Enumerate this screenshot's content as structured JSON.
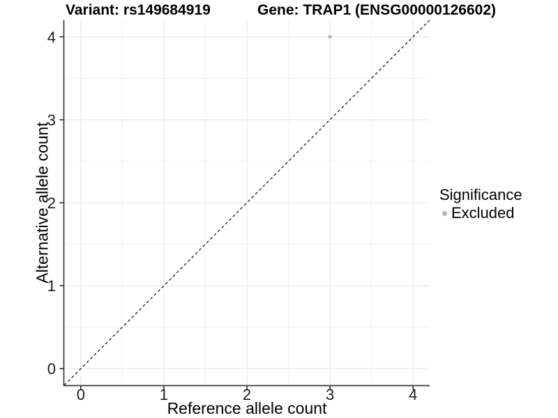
{
  "chart_data": {
    "type": "scatter",
    "title_left": "Variant: rs149684919",
    "title_right": "Gene: TRAP1 (ENSG00000126602)",
    "xlabel": "Reference allele count",
    "ylabel": "Alternative allele count",
    "xlim": [
      -0.2,
      4.2
    ],
    "ylim": [
      -0.2,
      4.2
    ],
    "x_ticks": [
      0,
      1,
      2,
      3,
      4
    ],
    "y_ticks": [
      0,
      1,
      2,
      3,
      4
    ],
    "x_minor_ticks": [
      0.5,
      1.5,
      2.5,
      3.5
    ],
    "y_minor_ticks": [
      0.5,
      1.5,
      2.5,
      3.5
    ],
    "grid": "major+minor",
    "series": [
      {
        "name": "Excluded",
        "color": "#b4b4b4",
        "points": [
          {
            "x": 3,
            "y": 4
          }
        ]
      }
    ],
    "identity_line": {
      "style": "dashed",
      "from": [
        -0.2,
        -0.2
      ],
      "to": [
        4.2,
        4.2
      ],
      "color": "#1a1a1a"
    },
    "legend": {
      "title": "Significance",
      "position": "right",
      "entries": [
        {
          "label": "Excluded",
          "color": "#b4b4b4"
        }
      ]
    },
    "colors": {
      "background": "#ffffff",
      "grid_major": "#e4e4e4",
      "grid_minor": "#f1f1f1",
      "axis_line": "#383838",
      "tick_mark": "#333333",
      "tick_text": "#1a1a1a"
    }
  }
}
